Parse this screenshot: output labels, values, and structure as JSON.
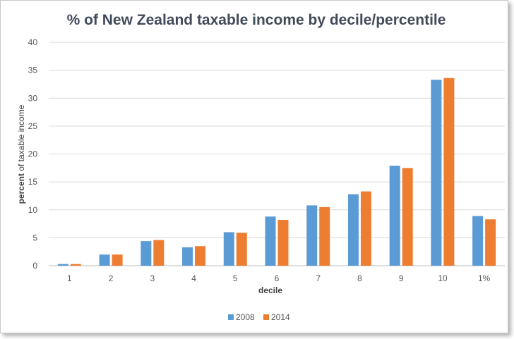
{
  "chart_data": {
    "type": "bar",
    "title": "% of New Zealand taxable income by decile/percentile",
    "xlabel": "decile",
    "ylabel_bold": "percent",
    "ylabel_rest": " of taxable income",
    "categories": [
      "1",
      "2",
      "3",
      "4",
      "5",
      "6",
      "7",
      "8",
      "9",
      "10",
      "1%"
    ],
    "series": [
      {
        "name": "2008",
        "color": "#5B9BD5",
        "values": [
          0.3,
          2.0,
          4.4,
          3.3,
          6.0,
          8.8,
          10.8,
          12.8,
          17.9,
          33.3,
          8.9
        ]
      },
      {
        "name": "2014",
        "color": "#ED7D31",
        "values": [
          0.3,
          2.0,
          4.6,
          3.5,
          5.9,
          8.2,
          10.5,
          13.3,
          17.5,
          33.6,
          8.3
        ]
      }
    ],
    "ylim": [
      0,
      40
    ],
    "yticks": [
      "0",
      "5",
      "10",
      "15",
      "20",
      "25",
      "30",
      "35",
      "40"
    ],
    "grid": true,
    "legend": "bottom-center"
  },
  "colors": {
    "title": "#404A59",
    "tick_text": "#595959",
    "gridline": "#D9D9D9",
    "axis_line": "#BFBFBF"
  }
}
